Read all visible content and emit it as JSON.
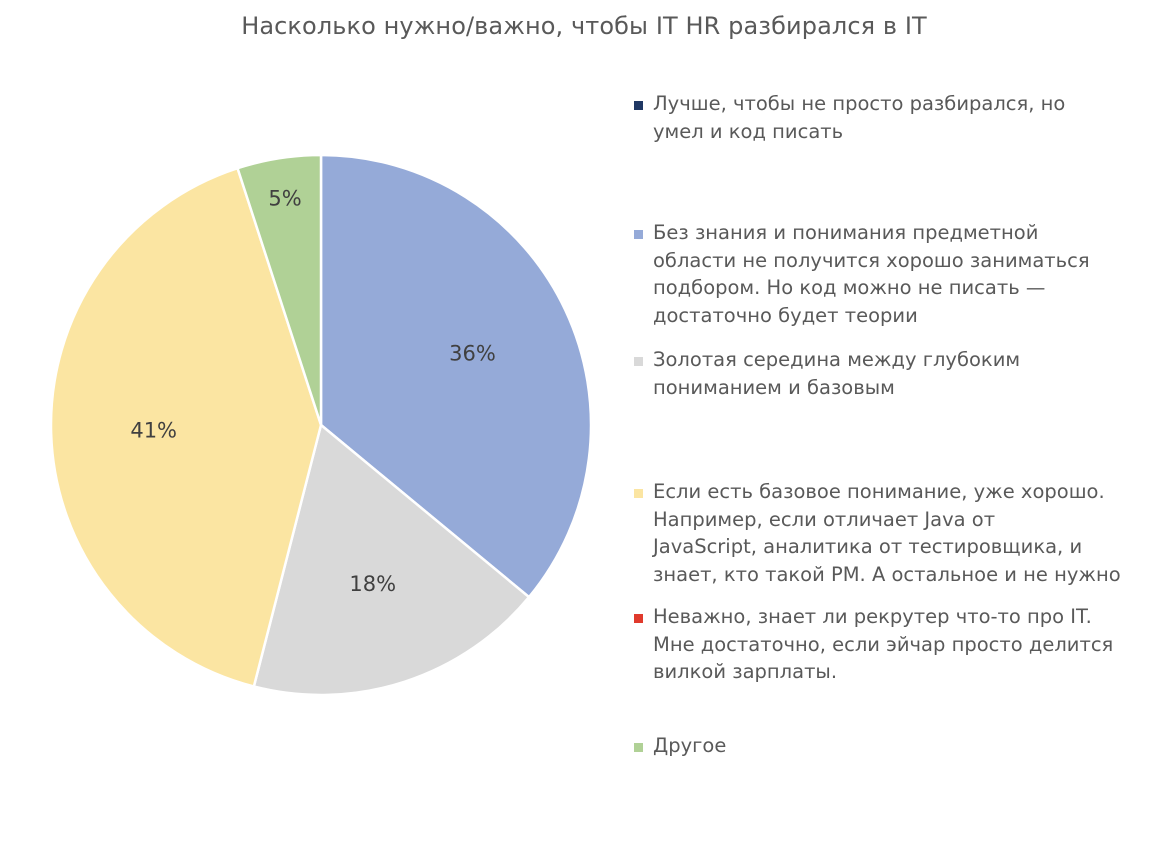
{
  "chart_data": {
    "type": "pie",
    "title": "Насколько нужно/важно, чтобы IT HR разбирался в IT",
    "legend_position": "right",
    "slices": [
      {
        "label": "Лучше, чтобы не просто разбирался, но\nумел и код писать",
        "value": 0,
        "color": "#203864",
        "data_label": ""
      },
      {
        "label": "Без знания и понимания предметной\nобласти не получится хорошо заниматься\nподбором. Но код можно не писать —\nдостаточно будет теории",
        "value": 36,
        "color": "#95AAD8",
        "data_label": "36%"
      },
      {
        "label": "Золотая середина между глубоким\nпониманием и базовым",
        "value": 18,
        "color": "#D9D9D9",
        "data_label": "18%"
      },
      {
        "label": "Если есть базовое понимание, уже хорошо.\nНапример, если отличает Java от\nJavaScript, аналитика от тестировщика, и\nзнает, кто такой PM. А остальное и не нужно",
        "value": 41,
        "color": "#FBE5A2",
        "data_label": "41%"
      },
      {
        "label": "Неважно, знает ли рекрутер что-то про IT.\nМне достаточно, если эйчар просто делится\nвилкой зарплаты.",
        "value": 0,
        "color": "#E03A2C",
        "data_label": ""
      },
      {
        "label": "Другое",
        "value": 5,
        "color": "#B0D196",
        "data_label": "5%"
      }
    ]
  }
}
